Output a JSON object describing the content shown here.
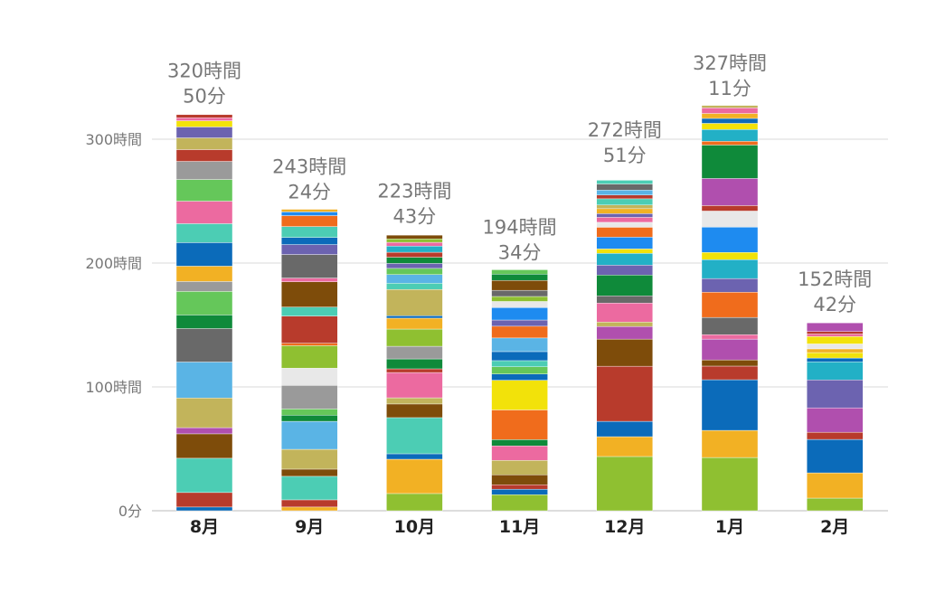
{
  "chart_data": {
    "type": "bar",
    "stacked": true,
    "title": "",
    "xlabel": "",
    "ylabel": "",
    "ylim": [
      0,
      340
    ],
    "y_unit": "hours",
    "grid": true,
    "yticks": [
      {
        "value": 0,
        "label": "0分"
      },
      {
        "value": 100,
        "label": "100時間"
      },
      {
        "value": 200,
        "label": "200時間"
      },
      {
        "value": 300,
        "label": "300時間"
      }
    ],
    "categories": [
      "8月",
      "9月",
      "10月",
      "11月",
      "12月",
      "1月",
      "2月"
    ],
    "totals": [
      320.83,
      243.4,
      223.72,
      194.57,
      272.85,
      327.18,
      152.7
    ],
    "total_labels": [
      [
        "320時間",
        "50分"
      ],
      [
        "243時間",
        "24分"
      ],
      [
        "223時間",
        "43分"
      ],
      [
        "194時間",
        "34分"
      ],
      [
        "272時間",
        "51分"
      ],
      [
        "327時間",
        "11分"
      ],
      [
        "152時間",
        "42分"
      ]
    ],
    "palette": {
      "yg": "#8fc031",
      "yo": "#f2b124",
      "blue": "#0b6bba",
      "red": "#b83b2c",
      "brown": "#7e4c0a",
      "purple": "#b04fae",
      "slate": "#6c63b0",
      "teal": "#4ccdb4",
      "sky": "#5ab4e5",
      "olive": "#c2b45b",
      "dgray": "#696969",
      "gray": "#9a9a9a",
      "green": "#0f8a3a",
      "lgreen": "#65c75a",
      "pink": "#ec6aa0",
      "orange": "#f06c1c",
      "yellow": "#f2e20a",
      "white": "#e8e8e8",
      "cyan": "#22b0c6",
      "dblue": "#1e8bf0"
    },
    "segments": [
      [
        [
          "blue",
          3
        ],
        [
          "red",
          11.7
        ],
        [
          "teal",
          27.7
        ],
        [
          "brown",
          19.7
        ],
        [
          "purple",
          5
        ],
        [
          "olive",
          24
        ],
        [
          "sky",
          29
        ],
        [
          "dgray",
          27
        ],
        [
          "green",
          11
        ],
        [
          "lgreen",
          19
        ],
        [
          "gray",
          8
        ],
        [
          "yo",
          12.4
        ],
        [
          "blue",
          19
        ],
        [
          "teal",
          15.3
        ],
        [
          "pink",
          18.2
        ],
        [
          "lgreen",
          17.5
        ],
        [
          "gray",
          14.6
        ],
        [
          "red",
          9.5
        ],
        [
          "olive",
          9.5
        ],
        [
          "slate",
          8.8
        ],
        [
          "yellow",
          5
        ],
        [
          "pink",
          2.4
        ],
        [
          "red",
          2.53
        ]
      ],
      [
        [
          "yo",
          3
        ],
        [
          "red",
          5.8
        ],
        [
          "teal",
          19
        ],
        [
          "brown",
          5.8
        ],
        [
          "olive",
          16
        ],
        [
          "sky",
          22.6
        ],
        [
          "green",
          5
        ],
        [
          "lgreen",
          5
        ],
        [
          "gray",
          19
        ],
        [
          "white",
          13.9
        ],
        [
          "yg",
          18.2
        ],
        [
          "orange",
          2
        ],
        [
          "red",
          21.9
        ],
        [
          "teal",
          7.3
        ],
        [
          "brown",
          20.4
        ],
        [
          "pink",
          3
        ],
        [
          "dgray",
          19
        ],
        [
          "slate",
          8
        ],
        [
          "blue",
          5.8
        ],
        [
          "teal",
          8.8
        ],
        [
          "orange",
          8.8
        ],
        [
          "dblue",
          3
        ],
        [
          "yo",
          2.1
        ]
      ],
      [
        [
          "yg",
          13.9
        ],
        [
          "yo",
          27.7
        ],
        [
          "blue",
          4.4
        ],
        [
          "teal",
          29.2
        ],
        [
          "brown",
          11
        ],
        [
          "olive",
          5
        ],
        [
          "pink",
          20.4
        ],
        [
          "red",
          3
        ],
        [
          "green",
          8
        ],
        [
          "gray",
          10.2
        ],
        [
          "yg",
          13.9
        ],
        [
          "yo",
          8.8
        ],
        [
          "blue",
          2
        ],
        [
          "olive",
          21.2
        ],
        [
          "teal",
          5
        ],
        [
          "sky",
          7
        ],
        [
          "lgreen",
          5
        ],
        [
          "slate",
          4
        ],
        [
          "green",
          5
        ],
        [
          "red",
          4
        ],
        [
          "cyan",
          5
        ],
        [
          "pink",
          3
        ],
        [
          "yg",
          2.82
        ],
        [
          "brown",
          3
        ]
      ],
      [
        [
          "yg",
          13
        ],
        [
          "blue",
          4.4
        ],
        [
          "red",
          3.6
        ],
        [
          "brown",
          8
        ],
        [
          "olive",
          11.7
        ],
        [
          "pink",
          11.7
        ],
        [
          "green",
          5
        ],
        [
          "orange",
          24
        ],
        [
          "yellow",
          24
        ],
        [
          "blue",
          5
        ],
        [
          "lgreen",
          5.8
        ],
        [
          "teal",
          5
        ],
        [
          "blue",
          7.3
        ],
        [
          "sky",
          11
        ],
        [
          "orange",
          9.5
        ],
        [
          "slate",
          5
        ],
        [
          "dblue",
          10
        ],
        [
          "white",
          5
        ],
        [
          "yg",
          4
        ],
        [
          "dgray",
          5
        ],
        [
          "brown",
          8
        ],
        [
          "green",
          5.07
        ],
        [
          "lgreen",
          3.5
        ]
      ],
      [
        [
          "yg",
          43.8
        ],
        [
          "yo",
          16
        ],
        [
          "blue",
          12.4
        ],
        [
          "red",
          44.5
        ],
        [
          "brown",
          21.9
        ],
        [
          "purple",
          10.2
        ],
        [
          "olive",
          3.6
        ],
        [
          "pink",
          15.3
        ],
        [
          "dgray",
          5.8
        ],
        [
          "green",
          16.8
        ],
        [
          "slate",
          8
        ],
        [
          "cyan",
          9.5
        ],
        [
          "yellow",
          3.6
        ],
        [
          "dblue",
          9.5
        ],
        [
          "orange",
          8
        ],
        [
          "white",
          4
        ],
        [
          "pink",
          4
        ],
        [
          "slate",
          3
        ],
        [
          "yo",
          4
        ],
        [
          "olive",
          3
        ],
        [
          "teal",
          5
        ],
        [
          "red",
          3
        ],
        [
          "sky",
          4
        ],
        [
          "dgray",
          4.95
        ],
        [
          "teal",
          3
        ]
      ],
      [
        [
          "yg",
          43
        ],
        [
          "yo",
          21.9
        ],
        [
          "blue",
          40.9
        ],
        [
          "red",
          11
        ],
        [
          "brown",
          5
        ],
        [
          "purple",
          16.8
        ],
        [
          "pink",
          3.6
        ],
        [
          "dgray",
          13.9
        ],
        [
          "orange",
          20.4
        ],
        [
          "slate",
          11
        ],
        [
          "cyan",
          15.3
        ],
        [
          "yellow",
          5.8
        ],
        [
          "dblue",
          20.4
        ],
        [
          "white",
          13
        ],
        [
          "red",
          4.4
        ],
        [
          "purple",
          21.9
        ],
        [
          "green",
          27
        ],
        [
          "orange",
          3
        ],
        [
          "cyan",
          9.5
        ],
        [
          "yellow",
          5
        ],
        [
          "blue",
          4
        ],
        [
          "yo",
          4
        ],
        [
          "pink",
          4.48
        ],
        [
          "olive",
          2
        ]
      ],
      [
        [
          "yg",
          10.2
        ],
        [
          "yo",
          20.4
        ],
        [
          "blue",
          27
        ],
        [
          "red",
          5.8
        ],
        [
          "purple",
          19.7
        ],
        [
          "slate",
          22.6
        ],
        [
          "cyan",
          14.6
        ],
        [
          "blue",
          3
        ],
        [
          "yellow",
          4.4
        ],
        [
          "yo",
          3
        ],
        [
          "white",
          4
        ],
        [
          "yellow",
          6
        ],
        [
          "pink",
          2
        ],
        [
          "red",
          2
        ],
        [
          "purple",
          7.0
        ]
      ]
    ]
  }
}
